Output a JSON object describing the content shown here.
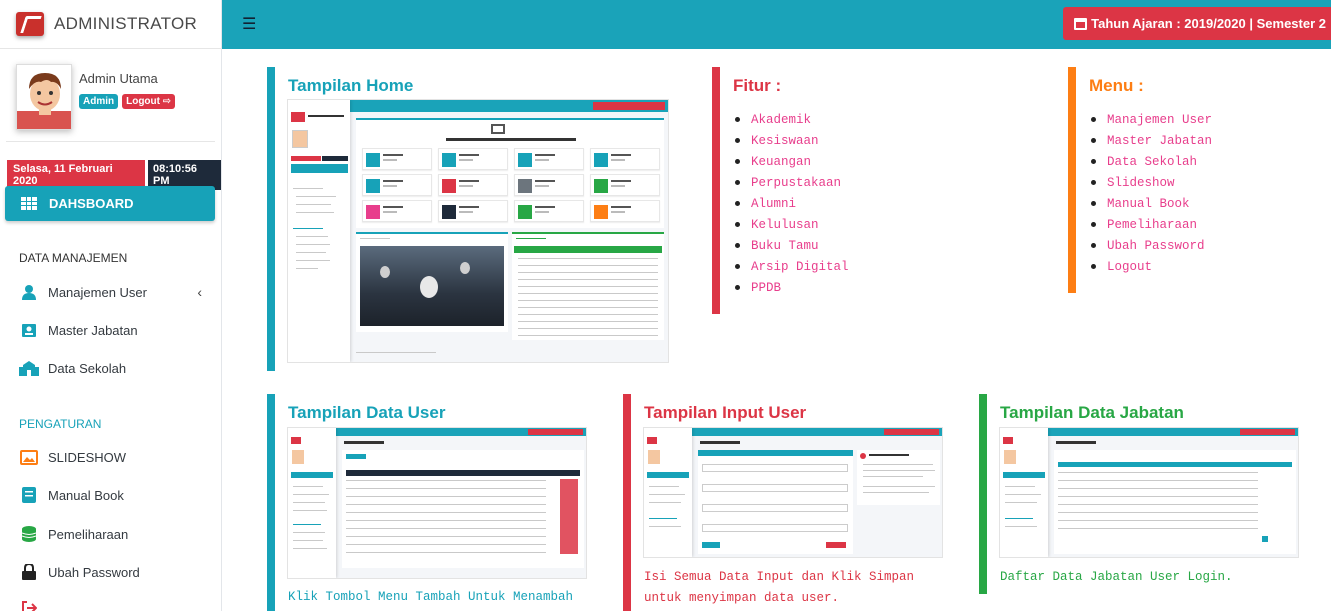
{
  "brand": {
    "title": "ADMINISTRATOR"
  },
  "user": {
    "name": "Admin Utama",
    "role_badge": "Admin",
    "logout_badge": "Logout"
  },
  "datetime": {
    "date": "Selasa, 11 Februari 2020",
    "time": "08:10:56 PM"
  },
  "sidebar": {
    "dashboard_label": "DAHSBOARD",
    "section_data": "DATA MANAJEMEN",
    "section_settings": "PENGATURAN",
    "items": [
      {
        "label": "Manajemen User",
        "icon": "user-icon"
      },
      {
        "label": "Master Jabatan",
        "icon": "id-badge-icon"
      },
      {
        "label": "Data Sekolah",
        "icon": "school-icon"
      },
      {
        "label": "SLIDESHOW",
        "icon": "image-icon"
      },
      {
        "label": "Manual Book",
        "icon": "book-icon"
      },
      {
        "label": "Pemeliharaan",
        "icon": "database-icon"
      },
      {
        "label": "Ubah Password",
        "icon": "lock-icon"
      }
    ]
  },
  "topbar": {
    "year_label": "Tahun Ajaran : 2019/2020 | Semester 2"
  },
  "cards": {
    "home": {
      "title": "Tampilan Home",
      "color": "#17a2b8"
    },
    "fitur": {
      "title": "Fitur :",
      "color": "#dc3545",
      "items": [
        "Akademik",
        "Kesiswaan",
        "Keuangan",
        "Perpustakaan",
        "Alumni",
        "Kelulusan",
        "Buku Tamu",
        "Arsip Digital",
        "PPDB"
      ]
    },
    "menu": {
      "title": "Menu :",
      "color": "#fd7e14",
      "items": [
        "Manajemen User",
        "Master Jabatan",
        "Data Sekolah",
        "Slideshow",
        "Manual Book",
        "Pemeliharaan",
        "Ubah Password",
        "Logout"
      ]
    },
    "data_user": {
      "title": "Tampilan Data User",
      "color": "#17a2b8",
      "desc": "Klik Tombol Menu Tambah Untuk Menambah",
      "desc_color": "#17a2b8"
    },
    "input_user": {
      "title": "Tampilan Input User",
      "color": "#dc3545",
      "desc": "Isi Semua Data Input dan Klik Simpan untuk menyimpan data user.",
      "desc_color": "#dc3545"
    },
    "data_jabatan": {
      "title": "Tampilan Data Jabatan",
      "color": "#28a745",
      "desc": "Daftar Data Jabatan User Login.",
      "desc_color": "#28a745"
    }
  }
}
